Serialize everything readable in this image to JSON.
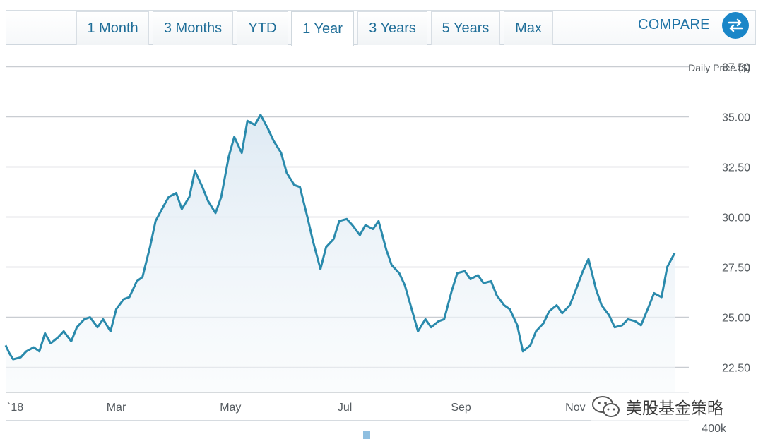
{
  "tabs": [
    {
      "label": "1 Month",
      "active": false
    },
    {
      "label": "3 Months",
      "active": false
    },
    {
      "label": "YTD",
      "active": false
    },
    {
      "label": "1 Year",
      "active": true
    },
    {
      "label": "3 Years",
      "active": false
    },
    {
      "label": "5 Years",
      "active": false
    },
    {
      "label": "Max",
      "active": false
    }
  ],
  "compare": {
    "label": "COMPARE",
    "icon": "swap-arrows-icon"
  },
  "colors": {
    "line": "#2a8aac",
    "fill_top": "#e3eef6",
    "grid": "#c9cdd2",
    "accent": "#1a86c8"
  },
  "volume_label": "400k",
  "watermark": {
    "text": "美股基金策略",
    "icon": "wechat-icon"
  },
  "chart_data": {
    "type": "area",
    "ylabel": "Daily Price ($)",
    "ylim": [
      21.25,
      38.75
    ],
    "yticks": [
      "37.50",
      "35.00",
      "32.50",
      "30.00",
      "27.50",
      "25.00",
      "22.50"
    ],
    "xticks": [
      "`18",
      "Mar",
      "May",
      "Jul",
      "Sep",
      "Nov"
    ],
    "grid": true,
    "series": [
      {
        "points": [
          [
            "2018-01-01",
            23.6
          ],
          [
            "2018-01-03",
            23.2
          ],
          [
            "2018-01-05",
            22.9
          ],
          [
            "2018-01-09",
            23.0
          ],
          [
            "2018-01-12",
            23.3
          ],
          [
            "2018-01-16",
            23.5
          ],
          [
            "2018-01-19",
            23.3
          ],
          [
            "2018-01-22",
            24.2
          ],
          [
            "2018-01-25",
            23.7
          ],
          [
            "2018-01-29",
            24.0
          ],
          [
            "2018-02-01",
            24.3
          ],
          [
            "2018-02-05",
            23.8
          ],
          [
            "2018-02-08",
            24.5
          ],
          [
            "2018-02-12",
            24.9
          ],
          [
            "2018-02-15",
            25.0
          ],
          [
            "2018-02-19",
            24.5
          ],
          [
            "2018-02-22",
            24.9
          ],
          [
            "2018-02-26",
            24.3
          ],
          [
            "2018-03-01",
            25.4
          ],
          [
            "2018-03-05",
            25.9
          ],
          [
            "2018-03-08",
            26.0
          ],
          [
            "2018-03-12",
            26.8
          ],
          [
            "2018-03-15",
            27.0
          ],
          [
            "2018-03-19",
            28.5
          ],
          [
            "2018-03-22",
            29.8
          ],
          [
            "2018-03-26",
            30.5
          ],
          [
            "2018-03-29",
            31.0
          ],
          [
            "2018-04-02",
            31.2
          ],
          [
            "2018-04-05",
            30.4
          ],
          [
            "2018-04-09",
            31.0
          ],
          [
            "2018-04-12",
            32.3
          ],
          [
            "2018-04-16",
            31.5
          ],
          [
            "2018-04-19",
            30.8
          ],
          [
            "2018-04-23",
            30.2
          ],
          [
            "2018-04-26",
            31.0
          ],
          [
            "2018-04-30",
            33.0
          ],
          [
            "2018-05-03",
            34.0
          ],
          [
            "2018-05-07",
            33.2
          ],
          [
            "2018-05-10",
            34.8
          ],
          [
            "2018-05-14",
            34.6
          ],
          [
            "2018-05-17",
            35.1
          ],
          [
            "2018-05-21",
            34.4
          ],
          [
            "2018-05-24",
            33.8
          ],
          [
            "2018-05-28",
            33.2
          ],
          [
            "2018-05-31",
            32.2
          ],
          [
            "2018-06-04",
            31.6
          ],
          [
            "2018-06-07",
            31.5
          ],
          [
            "2018-06-11",
            30.0
          ],
          [
            "2018-06-14",
            28.8
          ],
          [
            "2018-06-18",
            27.4
          ],
          [
            "2018-06-21",
            28.5
          ],
          [
            "2018-06-25",
            28.9
          ],
          [
            "2018-06-28",
            29.8
          ],
          [
            "2018-07-02",
            29.9
          ],
          [
            "2018-07-05",
            29.6
          ],
          [
            "2018-07-09",
            29.1
          ],
          [
            "2018-07-12",
            29.6
          ],
          [
            "2018-07-16",
            29.4
          ],
          [
            "2018-07-19",
            29.8
          ],
          [
            "2018-07-23",
            28.4
          ],
          [
            "2018-07-26",
            27.6
          ],
          [
            "2018-07-30",
            27.2
          ],
          [
            "2018-08-02",
            26.6
          ],
          [
            "2018-08-06",
            25.3
          ],
          [
            "2018-08-09",
            24.3
          ],
          [
            "2018-08-13",
            24.9
          ],
          [
            "2018-08-16",
            24.5
          ],
          [
            "2018-08-20",
            24.8
          ],
          [
            "2018-08-23",
            24.9
          ],
          [
            "2018-08-27",
            26.3
          ],
          [
            "2018-08-30",
            27.2
          ],
          [
            "2018-09-03",
            27.3
          ],
          [
            "2018-09-06",
            26.9
          ],
          [
            "2018-09-10",
            27.1
          ],
          [
            "2018-09-13",
            26.7
          ],
          [
            "2018-09-17",
            26.8
          ],
          [
            "2018-09-20",
            26.1
          ],
          [
            "2018-09-24",
            25.6
          ],
          [
            "2018-09-27",
            25.4
          ],
          [
            "2018-10-01",
            24.6
          ],
          [
            "2018-10-04",
            23.3
          ],
          [
            "2018-10-08",
            23.6
          ],
          [
            "2018-10-11",
            24.3
          ],
          [
            "2018-10-15",
            24.7
          ],
          [
            "2018-10-18",
            25.3
          ],
          [
            "2018-10-22",
            25.6
          ],
          [
            "2018-10-25",
            25.2
          ],
          [
            "2018-10-29",
            25.6
          ],
          [
            "2018-11-01",
            26.3
          ],
          [
            "2018-11-05",
            27.3
          ],
          [
            "2018-11-08",
            27.9
          ],
          [
            "2018-11-12",
            26.4
          ],
          [
            "2018-11-15",
            25.6
          ],
          [
            "2018-11-19",
            25.1
          ],
          [
            "2018-11-22",
            24.5
          ],
          [
            "2018-11-26",
            24.6
          ],
          [
            "2018-11-29",
            24.9
          ],
          [
            "2018-12-03",
            24.8
          ],
          [
            "2018-12-06",
            24.6
          ],
          [
            "2018-12-10",
            25.5
          ],
          [
            "2018-12-13",
            26.2
          ],
          [
            "2018-12-17",
            26.0
          ],
          [
            "2018-12-20",
            27.5
          ],
          [
            "2018-12-24",
            28.2
          ]
        ]
      }
    ]
  }
}
